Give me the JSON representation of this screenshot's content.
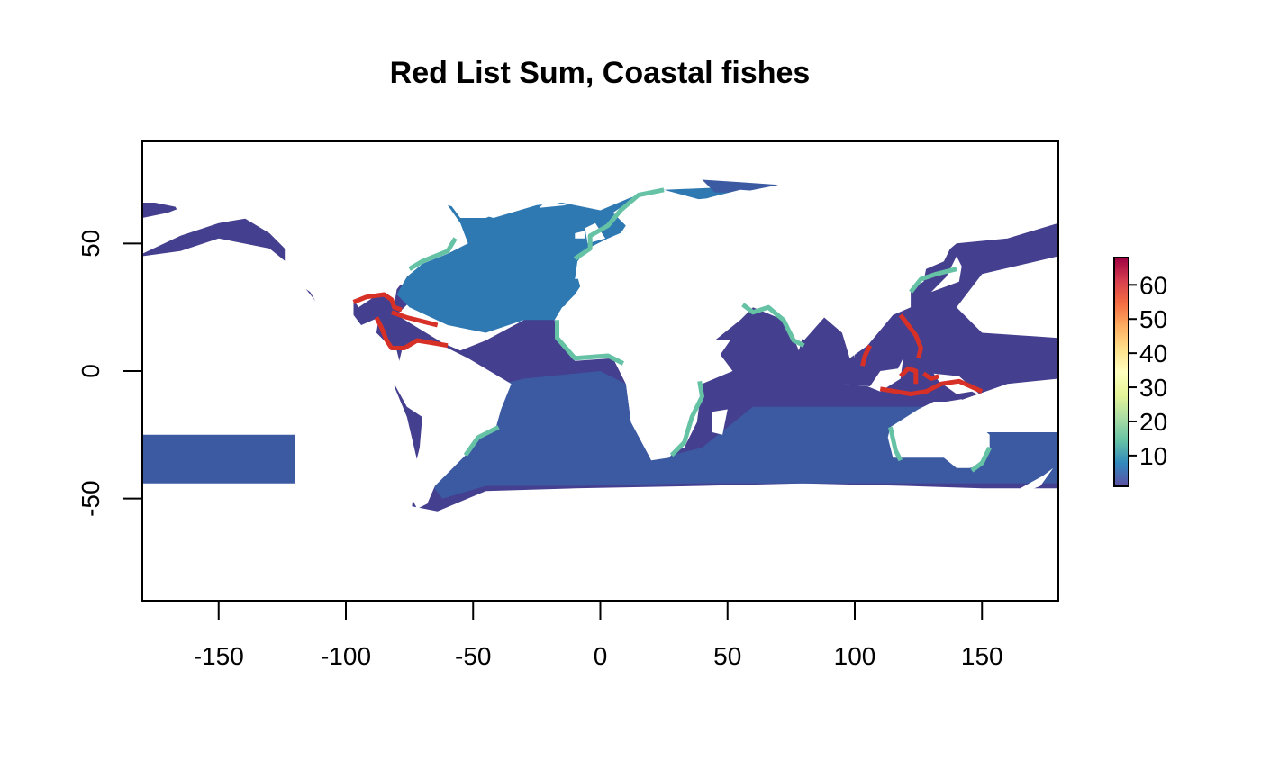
{
  "chart_data": {
    "type": "heatmap",
    "title": "Red List Sum, Coastal fishes",
    "xlabel": "",
    "ylabel": "",
    "xlim": [
      -180,
      180
    ],
    "ylim": [
      -90,
      90
    ],
    "x_ticks": [
      -150,
      -100,
      -50,
      0,
      50,
      100,
      150
    ],
    "y_ticks": [
      -50,
      0,
      50
    ],
    "x_tick_labels": [
      "-150",
      "-100",
      "-50",
      "0",
      "50",
      "100",
      "150"
    ],
    "y_tick_labels": [
      "-50",
      "0",
      "50"
    ],
    "grid": false,
    "legend": {
      "type": "colorbar",
      "placement": "right",
      "range": [
        1,
        68
      ],
      "ticks": [
        10,
        20,
        30,
        40,
        50,
        60
      ],
      "tick_labels": [
        "10",
        "20",
        "30",
        "40",
        "50",
        "60"
      ],
      "palette": [
        "#5E4FA2",
        "#3288BD",
        "#66C2A5",
        "#ABDDA4",
        "#E6F598",
        "#FFFFBF",
        "#FEE08B",
        "#FDAE61",
        "#F46D43",
        "#D53E4F",
        "#9E0142"
      ]
    },
    "colors": {
      "ocean_low": "#453f8f",
      "ocean_mid": "#3b5aa2",
      "north_atlantic": "#2f79b3",
      "coast_mid": "#66c2a5",
      "coast_high": "#d73027"
    }
  }
}
